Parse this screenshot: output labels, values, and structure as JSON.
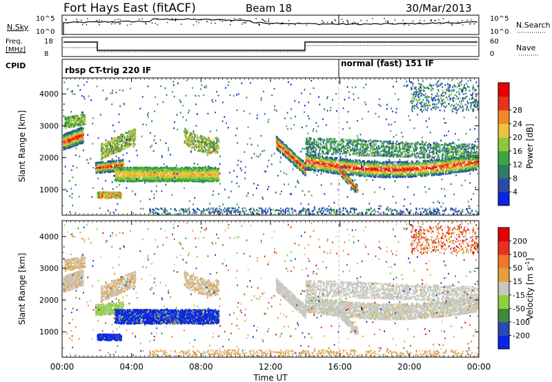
{
  "header": {
    "title": "Fort Hays East (fitACF)",
    "beam": "Beam 18",
    "date": "30/Mar/2013"
  },
  "nsky_panel": {
    "left_label": "N.Sky",
    "left_ticks": [
      "10^5",
      "10^0"
    ],
    "right_ticks": [
      "10^5",
      "10^0"
    ],
    "right_label": "N.Search"
  },
  "freq_panel": {
    "left_label_1": "Freq.",
    "left_label_2": "[MHz]",
    "left_ticks": [
      "18",
      "8"
    ],
    "right_ticks": [
      "60",
      "0"
    ],
    "right_label": "Nave"
  },
  "cpid": {
    "label": "CPID",
    "mode_1": "rbsp CT-trig 220 IF",
    "mode_2": "normal (fast) 151 IF"
  },
  "chart_data": [
    {
      "type": "heatmap",
      "name": "power",
      "ylabel": "Slant Range [km]",
      "yticks": [
        1000,
        2000,
        3000,
        4000
      ],
      "ylim": [
        200,
        4500
      ],
      "xlim": [
        0,
        24
      ],
      "colorbar_label": "Power [dB]",
      "colorbar_ticks": [
        "4",
        "8",
        "12",
        "16",
        "20",
        "24",
        "28"
      ],
      "colorbar_colors": [
        "#0a23e6",
        "#2a4aa8",
        "#2f7a6a",
        "#3aa63c",
        "#8cc83c",
        "#f0c23c",
        "#f08a28",
        "#e8321e",
        "#e80000"
      ]
    },
    {
      "type": "heatmap",
      "name": "velocity",
      "ylabel": "Slant Range [km]",
      "yticks": [
        1000,
        2000,
        3000,
        4000
      ],
      "ylim": [
        200,
        4500
      ],
      "xlim": [
        0,
        24
      ],
      "colorbar_label": "Velocity [m s",
      "colorbar_label_sup": "-1",
      "colorbar_label_end": "]",
      "colorbar_ticks": [
        "200",
        "100",
        "50",
        "15",
        "-15",
        "-50",
        "-100",
        "-200"
      ],
      "colorbar_colors": [
        "#0a23e6",
        "#2a4ab4",
        "#3c8c3c",
        "#8cd23c",
        "#c8c8c0",
        "#e8a03c",
        "#f07828",
        "#e8321e",
        "#e80000"
      ]
    }
  ],
  "xaxis": {
    "label": "Time UT",
    "ticks": [
      "00:00",
      "04:00",
      "08:00",
      "12:00",
      "16:00",
      "20:00",
      "00:00"
    ]
  }
}
